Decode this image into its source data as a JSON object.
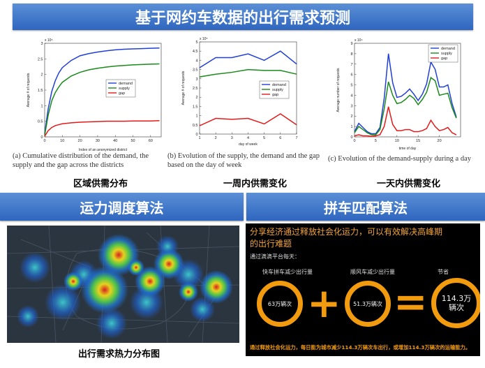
{
  "header": {
    "title": "基于网约车数据的出行需求预测"
  },
  "charts": {
    "districts": {
      "caption": "(a) Cumulative distribution of the demand, the supply and the gap across the districts",
      "label": "区域供需分布"
    },
    "week": {
      "caption": "(b) Evolution of the supply, the demand and the gap based on the day of week",
      "label": "一周内供需变化"
    },
    "day": {
      "caption": "(c) Evolution of the demand-supply during a day",
      "label": "一天内供需变化"
    }
  },
  "chart_data": [
    {
      "type": "line",
      "exponent": "x 10⁵",
      "xlabel": "Index of an anonymized district",
      "ylabel": "Average # of requests",
      "xlim": [
        0,
        66
      ],
      "ylim": [
        0,
        3
      ],
      "xticks": [
        0,
        10,
        20,
        30,
        40,
        50,
        60
      ],
      "yticks": [
        0,
        0.5,
        1,
        1.5,
        2,
        2.5,
        3
      ],
      "x": [
        0,
        2,
        4,
        6,
        8,
        10,
        15,
        20,
        25,
        30,
        35,
        40,
        45,
        50,
        55,
        60,
        65
      ],
      "series": [
        {
          "name": "demand",
          "color": "#1f3fd6",
          "values": [
            0.1,
            0.9,
            1.45,
            1.8,
            2.05,
            2.22,
            2.45,
            2.6,
            2.67,
            2.72,
            2.76,
            2.79,
            2.81,
            2.82,
            2.83,
            2.84,
            2.85
          ]
        },
        {
          "name": "supply",
          "color": "#1a8a1a",
          "values": [
            0.05,
            0.7,
            1.15,
            1.42,
            1.6,
            1.75,
            1.95,
            2.07,
            2.15,
            2.2,
            2.24,
            2.27,
            2.29,
            2.31,
            2.32,
            2.33,
            2.34
          ]
        },
        {
          "name": "gap",
          "color": "#e41a1a",
          "values": [
            0.02,
            0.2,
            0.3,
            0.36,
            0.39,
            0.42,
            0.45,
            0.47,
            0.48,
            0.49,
            0.5,
            0.5,
            0.5,
            0.51,
            0.51,
            0.51,
            0.52
          ]
        }
      ],
      "legend": "right"
    },
    {
      "type": "line",
      "exponent": "x 10⁵",
      "xlabel": "day of week",
      "ylabel": "Average # of requests",
      "xlim": [
        1,
        7
      ],
      "ylim": [
        0,
        5
      ],
      "xticks": [
        1,
        2,
        3,
        4,
        5,
        6,
        7
      ],
      "yticks": [
        0,
        0.5,
        1,
        1.5,
        2,
        2.5,
        3,
        3.5,
        4,
        4.5,
        5
      ],
      "x": [
        1,
        2,
        3,
        4,
        5,
        6,
        7
      ],
      "series": [
        {
          "name": "demand",
          "color": "#1f3fd6",
          "values": [
            3.6,
            4.15,
            4.15,
            4.35,
            4.0,
            4.5,
            3.8
          ]
        },
        {
          "name": "supply",
          "color": "#1a8a1a",
          "values": [
            3.1,
            3.25,
            3.35,
            3.5,
            3.45,
            3.45,
            3.25
          ]
        },
        {
          "name": "gap",
          "color": "#e41a1a",
          "values": [
            0.45,
            0.85,
            0.8,
            0.85,
            0.55,
            1.1,
            0.5
          ]
        }
      ],
      "legend": "lower-right"
    },
    {
      "type": "line",
      "exponent": "x 10⁴",
      "xlabel": "time of day",
      "ylabel": "Average number of requests",
      "xlim": [
        0,
        25
      ],
      "ylim": [
        0,
        9
      ],
      "xticks": [
        0,
        5,
        10,
        15,
        20
      ],
      "yticks": [
        0,
        1,
        2,
        3,
        4,
        5,
        6,
        7,
        8,
        9
      ],
      "x": [
        0,
        1,
        2,
        3,
        4,
        5,
        6,
        7,
        8,
        9,
        10,
        11,
        12,
        13,
        14,
        15,
        16,
        17,
        18,
        19,
        20,
        21,
        22,
        23,
        24
      ],
      "series": [
        {
          "name": "demand",
          "color": "#1f3fd6",
          "values": [
            0.5,
            1.3,
            0.9,
            0.5,
            0.3,
            0.3,
            0.9,
            3.7,
            8.0,
            5.2,
            3.8,
            3.9,
            4.2,
            4.6,
            4.1,
            3.5,
            4.1,
            5.1,
            7.2,
            6.5,
            4.8,
            4.8,
            5.0,
            3.2,
            1.9
          ]
        },
        {
          "name": "supply",
          "color": "#1a8a1a",
          "values": [
            0.4,
            1.0,
            0.7,
            0.4,
            0.2,
            0.2,
            0.7,
            2.7,
            5.3,
            4.0,
            3.2,
            3.3,
            3.6,
            4.0,
            3.7,
            3.1,
            3.6,
            4.3,
            5.7,
            5.4,
            4.0,
            4.1,
            4.2,
            2.8,
            1.8
          ]
        },
        {
          "name": "gap",
          "color": "#e41a1a",
          "values": [
            0.1,
            0.2,
            0.1,
            0.1,
            0.05,
            0.1,
            0.2,
            1.0,
            2.9,
            1.2,
            0.6,
            0.6,
            0.7,
            0.7,
            0.5,
            0.5,
            0.6,
            0.8,
            1.6,
            1.0,
            0.6,
            0.7,
            0.9,
            0.4,
            0.2
          ]
        }
      ],
      "legend": "top-right"
    }
  ],
  "sections": {
    "dispatch": {
      "title": "运力调度算法",
      "heatmap_caption": "出行需求热力分布图"
    },
    "carpool": {
      "title": "拼车匹配算法",
      "headline_line1": "分享经济通过释放社会化运力，可以有效解决高峰期",
      "headline_line2": "的出行难题",
      "platform_note": "通过滴滴平台每天：",
      "item1_label": "快车拼车减少出行量",
      "item1_value": "63万辆次",
      "item2_label": "顺风车减少出行量",
      "item2_value": "51.3万辆次",
      "item3_label": "节省",
      "item3_value_line1": "114.3万",
      "item3_value_line2": "辆次",
      "plus": "+",
      "equals": "=",
      "footer": "通过释放社会化运力，每日能为城市减少114.3万辆次车出行，或增加114.3万辆次的运输能力。",
      "colors": {
        "accent": "#f29b0f",
        "headline": "#f3a33a"
      }
    }
  }
}
